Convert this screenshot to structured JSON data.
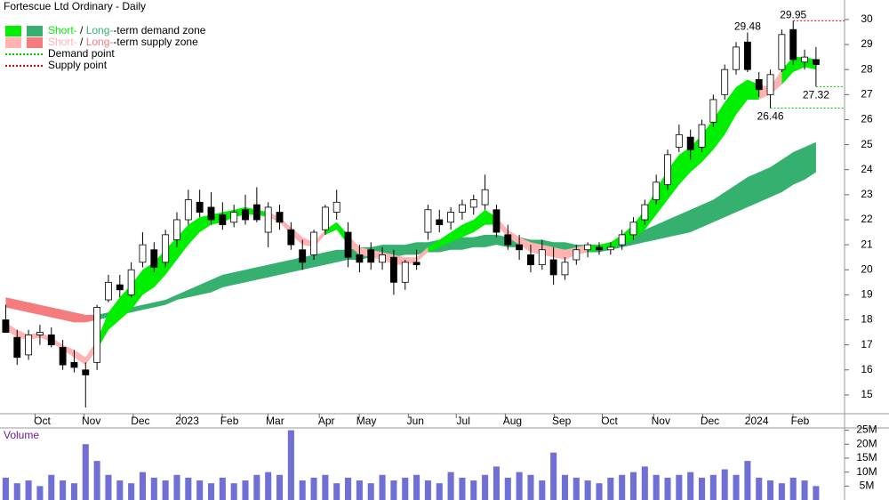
{
  "chart_data": {
    "type": "candlestick",
    "title": "Fortescue Ltd Ordinary - Daily",
    "xlim": [
      0,
      74
    ],
    "xticks": [
      {
        "value": 3.7,
        "label": "Oct"
      },
      {
        "value": 8.0,
        "label": "Nov"
      },
      {
        "value": 12.3,
        "label": "Dec"
      },
      {
        "value": 16.4,
        "label": "2023"
      },
      {
        "value": 20.1,
        "label": "Feb"
      },
      {
        "value": 24.1,
        "label": "Mar"
      },
      {
        "value": 28.6,
        "label": "Apr"
      },
      {
        "value": 32.1,
        "label": "May"
      },
      {
        "value": 36.4,
        "label": "Jun"
      },
      {
        "value": 40.6,
        "label": "Jul"
      },
      {
        "value": 44.9,
        "label": "Aug"
      },
      {
        "value": 49.2,
        "label": "Sep"
      },
      {
        "value": 53.4,
        "label": "Oct"
      },
      {
        "value": 57.9,
        "label": "Nov"
      },
      {
        "value": 62.2,
        "label": "Dec"
      },
      {
        "value": 66.3,
        "label": "2024"
      },
      {
        "value": 70.1,
        "label": "Feb"
      }
    ],
    "ylim": [
      14.25,
      30.78
    ],
    "yticks": [
      15,
      16,
      17,
      18,
      19,
      20,
      21,
      22,
      23,
      24,
      25,
      26,
      27,
      28,
      29,
      30
    ],
    "ohlc": {
      "open": [
        18.0,
        17.3,
        16.6,
        17.4,
        17.4,
        16.9,
        16.3,
        16.0,
        16.3,
        18.8,
        19.4,
        19.0,
        20.3,
        20.8,
        20.3,
        21.2,
        22.0,
        22.7,
        22.5,
        22.2,
        21.9,
        22.4,
        22.6,
        21.5,
        22.3,
        21.6,
        20.8,
        20.6,
        21.6,
        22.3,
        21.5,
        20.6,
        20.8,
        20.3,
        20.5,
        19.5,
        20.3,
        21.5,
        22.0,
        21.9,
        22.3,
        22.5,
        22.6,
        22.4,
        21.4,
        21.0,
        20.6,
        20.2,
        20.4,
        19.8,
        20.4,
        20.8,
        20.9,
        20.8,
        21.0,
        21.4,
        22.0,
        22.8,
        23.4,
        24.9,
        25.3,
        24.9,
        25.9,
        27.0,
        28.0,
        29.1,
        27.6,
        27.0,
        28.0,
        29.6,
        28.3,
        28.4
      ],
      "high": [
        18.6,
        17.6,
        17.6,
        17.8,
        17.7,
        17.2,
        16.8,
        16.3,
        18.6,
        19.8,
        19.8,
        20.3,
        21.5,
        21.1,
        21.6,
        22.3,
        23.2,
        23.2,
        23.1,
        22.7,
        22.6,
        23.0,
        23.3,
        22.7,
        22.6,
        21.9,
        21.2,
        21.6,
        22.6,
        23.2,
        21.9,
        21.0,
        21.1,
        20.9,
        20.8,
        20.4,
        20.8,
        22.6,
        22.4,
        22.5,
        22.8,
        23.0,
        23.8,
        22.6,
        21.8,
        21.4,
        21.0,
        21.2,
        20.9,
        20.5,
        21.0,
        21.1,
        21.1,
        21.1,
        21.6,
        22.1,
        22.8,
        23.8,
        24.8,
        25.8,
        25.6,
        26.0,
        27.0,
        28.2,
        29.1,
        29.48,
        27.9,
        28.0,
        29.6,
        29.95,
        28.8,
        28.9
      ],
      "low": [
        17.5,
        16.2,
        16.4,
        17.0,
        16.9,
        16.0,
        15.9,
        14.5,
        16.0,
        18.7,
        18.9,
        18.9,
        20.1,
        19.9,
        20.1,
        20.9,
        21.8,
        22.1,
        21.8,
        21.6,
        21.7,
        21.8,
        21.9,
        20.9,
        21.6,
        20.8,
        20.0,
        20.4,
        21.4,
        22.0,
        20.1,
        19.9,
        20.0,
        20.0,
        19.0,
        19.2,
        20.0,
        21.2,
        21.5,
        21.6,
        22.0,
        22.2,
        22.4,
        21.3,
        20.8,
        20.4,
        19.9,
        20.0,
        19.4,
        19.6,
        20.2,
        20.5,
        20.6,
        20.6,
        20.8,
        21.2,
        21.8,
        22.6,
        23.2,
        24.7,
        24.4,
        24.7,
        25.7,
        26.8,
        27.8,
        27.9,
        26.9,
        26.46,
        27.9,
        28.2,
        28.0,
        27.32
      ],
      "close": [
        17.5,
        16.5,
        17.4,
        17.5,
        17.0,
        16.2,
        16.1,
        15.8,
        18.5,
        19.5,
        19.2,
        20.0,
        21.0,
        20.1,
        21.4,
        22.0,
        22.8,
        22.3,
        22.0,
        21.8,
        22.3,
        22.0,
        22.0,
        22.5,
        21.9,
        21.0,
        20.3,
        21.5,
        22.5,
        22.7,
        20.5,
        20.3,
        20.3,
        20.6,
        19.5,
        20.3,
        20.2,
        22.4,
        21.8,
        22.3,
        22.6,
        22.8,
        23.2,
        21.5,
        21.0,
        20.8,
        20.2,
        20.8,
        19.8,
        20.3,
        20.8,
        21.0,
        20.8,
        20.9,
        21.4,
        21.9,
        22.6,
        23.5,
        24.6,
        25.4,
        24.8,
        25.8,
        26.8,
        28.0,
        28.9,
        28.0,
        27.2,
        27.8,
        29.4,
        28.4,
        28.5,
        28.2
      ]
    },
    "zones": {
      "long_supply": {
        "color": "#f47c7c",
        "upper": [
          18.9,
          18.8,
          18.7,
          18.6,
          18.5,
          18.4,
          18.3,
          18.2,
          18.2,
          null,
          null,
          null,
          null,
          null,
          null,
          null,
          null,
          null,
          null,
          null,
          null,
          null,
          null,
          null,
          null,
          null,
          null,
          null,
          null,
          null,
          null,
          null,
          null,
          null,
          null,
          null,
          null,
          null,
          null,
          null,
          null,
          null,
          null,
          null,
          null,
          null,
          null,
          null,
          null,
          null,
          null,
          null,
          null,
          null,
          null,
          null,
          null,
          null,
          null,
          null,
          null,
          null,
          null,
          null,
          null,
          null,
          null,
          null,
          null,
          null,
          null,
          null
        ],
        "lower": [
          18.5,
          18.4,
          18.3,
          18.2,
          18.1,
          18.0,
          17.9,
          17.9,
          18.0,
          null,
          null,
          null,
          null,
          null,
          null,
          null,
          null,
          null,
          null,
          null,
          null,
          null,
          null,
          null,
          null,
          null,
          null,
          null,
          null,
          null,
          null,
          null,
          null,
          null,
          null,
          null,
          null,
          null,
          null,
          null,
          null,
          null,
          null,
          null,
          null,
          null,
          null,
          null,
          null,
          null,
          null,
          null,
          null,
          null,
          null,
          null,
          null,
          null,
          null,
          null,
          null,
          null,
          null,
          null,
          null,
          null,
          null,
          null,
          null,
          null,
          null,
          null
        ]
      },
      "long_demand": {
        "color": "#36b06e",
        "upper": [
          null,
          null,
          null,
          null,
          null,
          null,
          null,
          null,
          18.2,
          18.3,
          18.4,
          18.5,
          18.6,
          18.7,
          18.8,
          19.0,
          19.2,
          19.4,
          19.6,
          19.8,
          19.9,
          20.0,
          20.1,
          20.2,
          20.3,
          20.4,
          20.5,
          20.6,
          20.7,
          20.8,
          20.8,
          20.9,
          20.9,
          21.0,
          21.0,
          21.0,
          21.1,
          21.1,
          21.2,
          21.2,
          21.3,
          21.3,
          21.4,
          21.4,
          21.3,
          21.3,
          21.2,
          21.2,
          21.1,
          21.1,
          21.0,
          21.0,
          21.0,
          21.1,
          21.2,
          21.4,
          21.6,
          21.8,
          22.0,
          22.2,
          22.4,
          22.6,
          22.8,
          23.1,
          23.4,
          23.7,
          23.9,
          24.1,
          24.4,
          24.7,
          24.9,
          25.1
        ],
        "lower": [
          null,
          null,
          null,
          null,
          null,
          null,
          null,
          null,
          18.0,
          18.1,
          18.2,
          18.3,
          18.4,
          18.5,
          18.6,
          18.8,
          18.9,
          19.0,
          19.1,
          19.3,
          19.4,
          19.5,
          19.6,
          19.7,
          19.8,
          19.9,
          20.0,
          20.1,
          20.2,
          20.3,
          20.4,
          20.4,
          20.5,
          20.5,
          20.5,
          20.6,
          20.6,
          20.7,
          20.7,
          20.8,
          20.8,
          20.9,
          20.9,
          21.0,
          20.9,
          20.9,
          20.9,
          20.8,
          20.8,
          20.8,
          20.7,
          20.7,
          20.7,
          20.8,
          20.9,
          21.0,
          21.1,
          21.2,
          21.3,
          21.4,
          21.5,
          21.7,
          21.9,
          22.1,
          22.3,
          22.5,
          22.7,
          22.9,
          23.1,
          23.4,
          23.6,
          23.9
        ]
      },
      "short_supply": {
        "color": "#ffb3b3",
        "upper": [
          17.9,
          17.6,
          17.4,
          17.5,
          17.3,
          17.0,
          16.8,
          16.5,
          17.2,
          null,
          null,
          null,
          null,
          null,
          null,
          null,
          null,
          null,
          null,
          null,
          null,
          null,
          null,
          22.3,
          22.1,
          21.7,
          21.3,
          21.1,
          21.6,
          null,
          21.4,
          20.9,
          20.8,
          20.7,
          20.6,
          20.5,
          20.5,
          20.9,
          null,
          null,
          null,
          null,
          null,
          22.1,
          21.6,
          21.3,
          21.1,
          21.0,
          20.9,
          20.8,
          20.9,
          21.0,
          null,
          null,
          null,
          null,
          null,
          null,
          null,
          null,
          null,
          null,
          null,
          null,
          null,
          null,
          27.4,
          27.3,
          28.0,
          null,
          null,
          null
        ],
        "lower": [
          17.6,
          17.3,
          17.2,
          17.3,
          17.1,
          16.8,
          16.5,
          16.2,
          16.8,
          null,
          null,
          null,
          null,
          null,
          null,
          null,
          null,
          null,
          null,
          null,
          null,
          null,
          null,
          22.1,
          21.9,
          21.4,
          21.0,
          20.9,
          21.4,
          null,
          21.0,
          20.6,
          20.5,
          20.4,
          20.2,
          20.2,
          20.3,
          20.7,
          null,
          null,
          null,
          null,
          null,
          21.8,
          21.3,
          21.0,
          20.7,
          20.6,
          20.5,
          20.4,
          20.6,
          20.7,
          null,
          null,
          null,
          null,
          null,
          null,
          null,
          null,
          null,
          null,
          null,
          null,
          null,
          null,
          26.8,
          27.0,
          27.4,
          null,
          null,
          null
        ]
      },
      "short_demand": {
        "color": "#00ee00",
        "upper": [
          null,
          null,
          null,
          null,
          null,
          null,
          null,
          null,
          17.2,
          18.3,
          18.9,
          19.4,
          20.0,
          20.3,
          20.8,
          21.3,
          21.8,
          22.1,
          22.2,
          22.3,
          22.4,
          22.5,
          22.4,
          22.3,
          null,
          null,
          null,
          null,
          21.6,
          21.9,
          21.4,
          null,
          null,
          null,
          null,
          null,
          null,
          20.9,
          21.2,
          21.5,
          21.8,
          22.0,
          22.4,
          22.1,
          null,
          null,
          null,
          null,
          null,
          null,
          null,
          21.0,
          21.0,
          21.1,
          21.4,
          21.8,
          22.4,
          23.2,
          24.0,
          24.6,
          24.9,
          25.4,
          26.0,
          26.7,
          27.3,
          27.6,
          27.4,
          null,
          28.0,
          28.5,
          28.5,
          28.4
        ],
        "lower": [
          null,
          null,
          null,
          null,
          null,
          null,
          null,
          null,
          16.8,
          17.6,
          18.0,
          18.4,
          19.0,
          19.3,
          19.8,
          20.4,
          21.0,
          21.5,
          21.8,
          21.9,
          22.1,
          22.2,
          22.2,
          22.1,
          null,
          null,
          null,
          null,
          21.4,
          21.6,
          21.0,
          null,
          null,
          null,
          null,
          null,
          null,
          20.7,
          20.9,
          21.1,
          21.3,
          21.5,
          21.8,
          21.8,
          null,
          null,
          null,
          null,
          null,
          null,
          null,
          20.7,
          20.8,
          20.9,
          21.0,
          21.2,
          21.6,
          22.2,
          22.8,
          23.4,
          23.9,
          24.3,
          24.8,
          25.4,
          26.2,
          26.8,
          26.8,
          null,
          27.4,
          27.9,
          28.1,
          28.0
        ]
      }
    },
    "peak_labels": [
      29.48
    ],
    "supply_points": [
      29.95
    ],
    "demand_points": [
      26.46,
      27.32
    ],
    "supply_point_color": "#dd0000",
    "demand_point_color": "#00cc00",
    "legend": {
      "demand": [
        "Short-",
        " / ",
        "Long-",
        "-term demand zone"
      ],
      "supply": [
        "Short-",
        " / ",
        "Long-",
        "-term supply zone"
      ],
      "demand_point": "Demand point",
      "supply_point": "Supply point"
    },
    "volume": {
      "title": "Volume",
      "color": "#6f6fd6",
      "ylim": [
        0,
        25.5
      ],
      "yticks": [
        {
          "value": 5,
          "label": "5M"
        },
        {
          "value": 10,
          "label": "10M"
        },
        {
          "value": 15,
          "label": "15M"
        },
        {
          "value": 20,
          "label": "20M"
        },
        {
          "value": 25,
          "label": "25M"
        }
      ],
      "values": [
        8,
        6,
        7,
        5,
        9,
        7,
        6,
        20,
        14,
        9,
        7,
        6,
        10,
        8,
        7,
        9,
        8,
        7,
        6,
        8,
        6,
        7,
        9,
        10,
        9,
        25,
        7,
        8,
        9,
        6,
        8,
        7,
        6,
        9,
        7,
        8,
        9,
        7,
        6,
        10,
        8,
        7,
        9,
        12,
        8,
        10,
        9,
        7,
        17,
        9,
        8,
        7,
        6,
        8,
        9,
        10,
        12,
        9,
        8,
        9,
        10,
        8,
        9,
        11,
        9,
        14,
        8,
        7,
        6,
        8,
        7,
        5
      ]
    }
  }
}
